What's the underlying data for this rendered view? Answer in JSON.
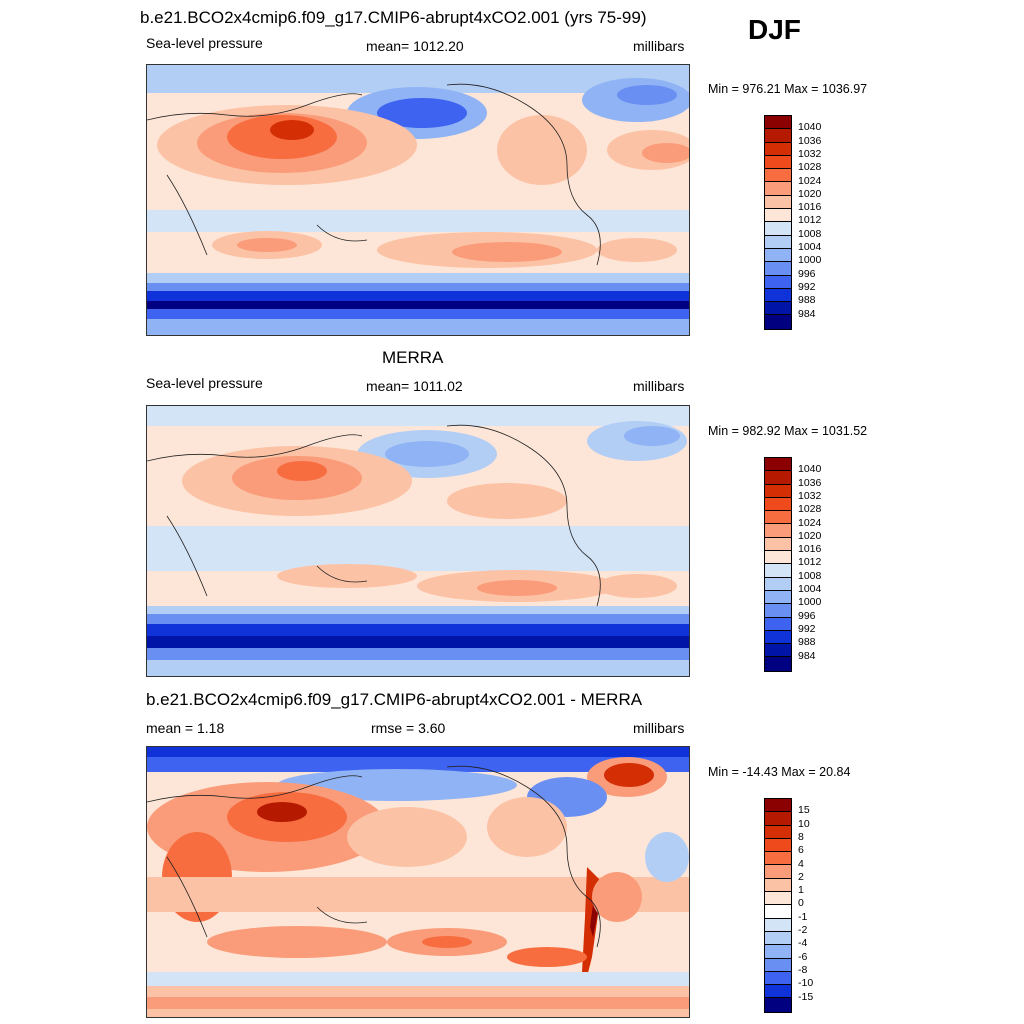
{
  "season": "DJF",
  "panels": [
    {
      "title": "b.e21.BCO2x4cmip6.f09_g17.CMIP6-abrupt4xCO2.001 (yrs 75-99)",
      "left_label": "Sea-level pressure",
      "center_label": "mean= 1012.20",
      "right_label": "millibars",
      "minmax": "Min = 976.21 Max = 1036.97",
      "colorbar": {
        "labels": [
          "1040",
          "1036",
          "1032",
          "1028",
          "1024",
          "1020",
          "1016",
          "1012",
          "1008",
          "1004",
          "1000",
          "996",
          "992",
          "988",
          "984"
        ],
        "colors": [
          "#8b0000",
          "#b51a00",
          "#d42e05",
          "#ef4a1c",
          "#f76d40",
          "#fa9c7a",
          "#fcc2a5",
          "#fde6d7",
          "#d4e4f7",
          "#b3cef5",
          "#8fb3f5",
          "#6a8ff2",
          "#3d63f0",
          "#1033d9",
          "#0015a8",
          "#000080"
        ]
      }
    },
    {
      "title": "MERRA",
      "left_label": "Sea-level pressure",
      "center_label": "mean= 1011.02",
      "right_label": "millibars",
      "minmax": "Min = 982.92 Max = 1031.52",
      "colorbar": {
        "labels": [
          "1040",
          "1036",
          "1032",
          "1028",
          "1024",
          "1020",
          "1016",
          "1012",
          "1008",
          "1004",
          "1000",
          "996",
          "992",
          "988",
          "984"
        ],
        "colors": [
          "#8b0000",
          "#b51a00",
          "#d42e05",
          "#ef4a1c",
          "#f76d40",
          "#fa9c7a",
          "#fcc2a5",
          "#fde6d7",
          "#d4e4f7",
          "#b3cef5",
          "#8fb3f5",
          "#6a8ff2",
          "#3d63f0",
          "#1033d9",
          "#0015a8",
          "#000080"
        ]
      }
    },
    {
      "title": "b.e21.BCO2x4cmip6.f09_g17.CMIP6-abrupt4xCO2.001 - MERRA",
      "left_label": "mean =   1.18",
      "center_label": "rmse =   3.60",
      "right_label": "millibars",
      "minmax": "Min = -14.43 Max =  20.84",
      "colorbar": {
        "labels": [
          "15",
          "10",
          "8",
          "6",
          "4",
          "2",
          "1",
          "0",
          "-1",
          "-2",
          "-4",
          "-6",
          "-8",
          "-10",
          "-15"
        ],
        "colors": [
          "#8b0000",
          "#b51a00",
          "#d42e05",
          "#ef4a1c",
          "#f76d40",
          "#fa9c7a",
          "#fcc2a5",
          "#fde6d7",
          "#ffffff",
          "#d4e4f7",
          "#b3cef5",
          "#8fb3f5",
          "#6a8ff2",
          "#3d63f0",
          "#1033d9",
          "#000080"
        ]
      }
    }
  ]
}
